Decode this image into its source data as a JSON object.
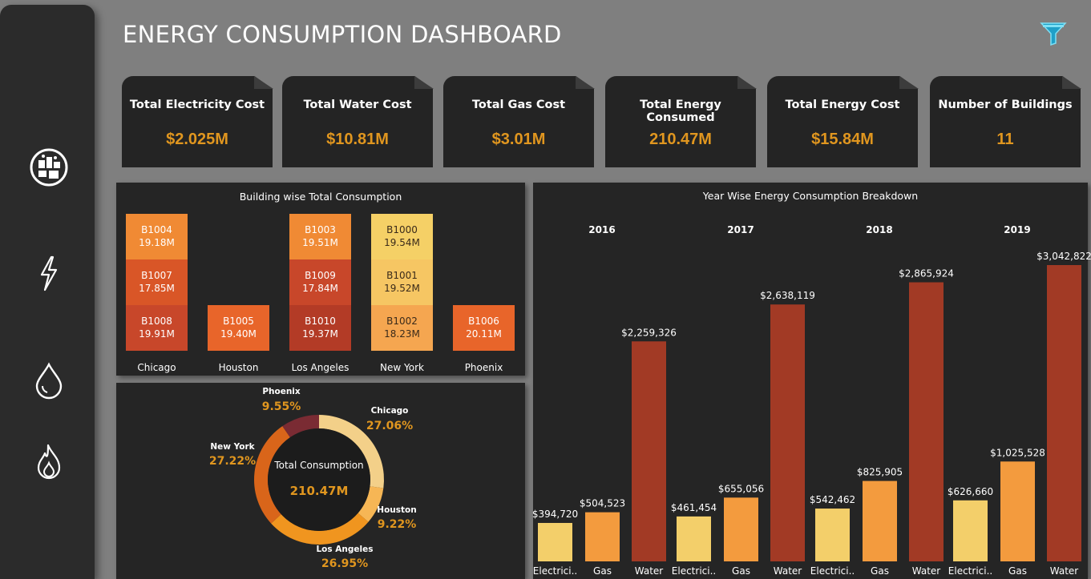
{
  "header": {
    "title": "ENERGY CONSUMPTION DASHBOARD"
  },
  "sidebar": {
    "icons": [
      "buildings-icon",
      "electricity-icon",
      "water-drop-icon",
      "gas-flame-icon"
    ]
  },
  "kpis": [
    {
      "label": "Total Electricity Cost",
      "value": "$2.025M"
    },
    {
      "label": "Total Water Cost",
      "value": "$10.81M"
    },
    {
      "label": "Total Gas Cost",
      "value": "$3.01M"
    },
    {
      "label": "Total Energy Consumed",
      "value": "210.47M"
    },
    {
      "label": "Total Energy Cost",
      "value": "$15.84M"
    },
    {
      "label": "Number of Buildings",
      "value": "11"
    }
  ],
  "colors": {
    "accent": "#e0961f",
    "electricity": "#f3cf6a",
    "gas": "#f39b3e",
    "water": "#a23a25"
  },
  "chart_data": [
    {
      "type": "bar",
      "title": "Building wise Total Consumption",
      "categories": [
        "Chicago",
        "Houston",
        "Los Angeles",
        "New York",
        "Phoenix"
      ],
      "stacks": [
        {
          "city": "Chicago",
          "segments": [
            {
              "label": "B1004",
              "value": "19.18M",
              "color": "#f08a34"
            },
            {
              "label": "B1007",
              "value": "17.85M",
              "color": "#d95627"
            },
            {
              "label": "B1008",
              "value": "19.91M",
              "color": "#c8472a"
            }
          ]
        },
        {
          "city": "Houston",
          "segments": [
            {
              "label": "B1005",
              "value": "19.40M",
              "color": "#e8652a"
            }
          ]
        },
        {
          "city": "Los Angeles",
          "segments": [
            {
              "label": "B1003",
              "value": "19.51M",
              "color": "#f08a34"
            },
            {
              "label": "B1009",
              "value": "17.84M",
              "color": "#c8472a"
            },
            {
              "label": "B1010",
              "value": "19.37M",
              "color": "#b33b26"
            }
          ]
        },
        {
          "city": "New York",
          "segments": [
            {
              "label": "B1000",
              "value": "19.54M",
              "color": "#f5d066"
            },
            {
              "label": "B1001",
              "value": "19.52M",
              "color": "#f6c663"
            },
            {
              "label": "B1002",
              "value": "18.23M",
              "color": "#f5a650"
            }
          ]
        },
        {
          "city": "Phoenix",
          "segments": [
            {
              "label": "B1006",
              "value": "20.11M",
              "color": "#e8652a"
            }
          ]
        }
      ]
    },
    {
      "type": "pie",
      "center_label": "Total Consumption",
      "center_value": "210.47M",
      "slices": [
        {
          "name": "Chicago",
          "value": 27.06,
          "label": "27.06%",
          "color": "#f3d089"
        },
        {
          "name": "Houston",
          "value": 9.22,
          "label": "9.22%",
          "color": "#f6b655"
        },
        {
          "name": "Los Angeles",
          "value": 26.95,
          "label": "26.95%",
          "color": "#f0951f"
        },
        {
          "name": "New York",
          "value": 27.22,
          "label": "27.22%",
          "color": "#d9651a"
        },
        {
          "name": "Phoenix",
          "value": 9.55,
          "label": "9.55%",
          "color": "#7a2b33"
        }
      ]
    },
    {
      "type": "bar",
      "title": "Year Wise Energy Consumption Breakdown",
      "groups": [
        {
          "year": "2016",
          "bars": [
            {
              "category": "Electrici..",
              "value": 394720,
              "label": "$394,720"
            },
            {
              "category": "Gas",
              "value": 504523,
              "label": "$504,523"
            },
            {
              "category": "Water",
              "value": 2259326,
              "label": "$2,259,326"
            }
          ]
        },
        {
          "year": "2017",
          "bars": [
            {
              "category": "Electrici..",
              "value": 461454,
              "label": "$461,454"
            },
            {
              "category": "Gas",
              "value": 655056,
              "label": "$655,056"
            },
            {
              "category": "Water",
              "value": 2638119,
              "label": "$2,638,119"
            }
          ]
        },
        {
          "year": "2018",
          "bars": [
            {
              "category": "Electrici..",
              "value": 542462,
              "label": "$542,462"
            },
            {
              "category": "Gas",
              "value": 825905,
              "label": "$825,905"
            },
            {
              "category": "Water",
              "value": 2865924,
              "label": "$2,865,924"
            }
          ]
        },
        {
          "year": "2019",
          "bars": [
            {
              "category": "Electrici..",
              "value": 626660,
              "label": "$626,660"
            },
            {
              "category": "Gas",
              "value": 1025528,
              "label": "$1,025,528"
            },
            {
              "category": "Water",
              "value": 3042822,
              "label": "$3,042,822"
            }
          ]
        }
      ]
    }
  ]
}
